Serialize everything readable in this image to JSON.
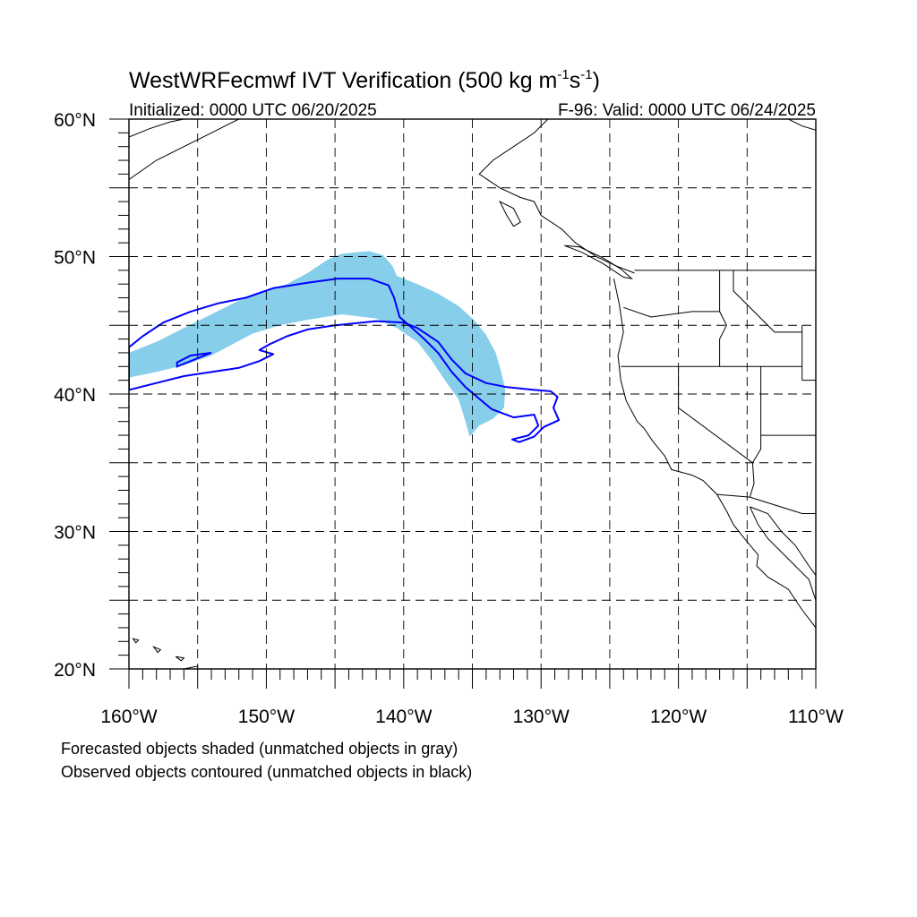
{
  "title": {
    "prefix": "WestWRFecmwf IVT Verification (500 kg m",
    "sup1": "-1",
    "mid": "s",
    "sup2": "-1",
    "suffix": ")"
  },
  "subtitle_left": "Initialized: 0000 UTC 06/20/2025",
  "subtitle_right": "F-96: Valid: 0000 UTC 06/24/2025",
  "axes": {
    "lon_range": [
      -160,
      -110
    ],
    "lat_range": [
      20,
      60
    ],
    "lon_ticks": [
      {
        "value": -160,
        "label": "160°W"
      },
      {
        "value": -150,
        "label": "150°W"
      },
      {
        "value": -140,
        "label": "140°W"
      },
      {
        "value": -130,
        "label": "130°W"
      },
      {
        "value": -120,
        "label": "120°W"
      },
      {
        "value": -110,
        "label": "110°W"
      }
    ],
    "lat_ticks": [
      {
        "value": 60,
        "label": "60°N"
      },
      {
        "value": 50,
        "label": "50°N"
      },
      {
        "value": 40,
        "label": "40°N"
      },
      {
        "value": 30,
        "label": "30°N"
      },
      {
        "value": 20,
        "label": "20°N"
      }
    ],
    "grid_step_deg": 5,
    "grid": true
  },
  "colors": {
    "forecast_fill": "#87ceeb",
    "observed_contour": "#0000ff",
    "coast": "#000000",
    "grid": "#000000"
  },
  "forecast_object": [
    [
      -160,
      43.0
    ],
    [
      -158,
      43.8
    ],
    [
      -156,
      44.8
    ],
    [
      -154,
      45.8
    ],
    [
      -152,
      46.8
    ],
    [
      -150,
      47.5
    ],
    [
      -148.5,
      48.0
    ],
    [
      -147,
      48.8
    ],
    [
      -145.5,
      49.8
    ],
    [
      -144.5,
      50.2
    ],
    [
      -142.5,
      50.4
    ],
    [
      -141.5,
      50.1
    ],
    [
      -140.8,
      49.3
    ],
    [
      -140.5,
      48.6
    ],
    [
      -139,
      48.0
    ],
    [
      -137.5,
      47.3
    ],
    [
      -136,
      46.4
    ],
    [
      -134.8,
      45.3
    ],
    [
      -134,
      44.3
    ],
    [
      -133.3,
      43.0
    ],
    [
      -132.9,
      41.6
    ],
    [
      -132.6,
      40.3
    ],
    [
      -132.7,
      39.0
    ],
    [
      -133.5,
      38.2
    ],
    [
      -134.5,
      37.7
    ],
    [
      -135.2,
      36.9
    ],
    [
      -135.5,
      38.0
    ],
    [
      -136.0,
      39.6
    ],
    [
      -137.0,
      41.0
    ],
    [
      -138.0,
      42.5
    ],
    [
      -139.0,
      43.8
    ],
    [
      -140.5,
      44.8
    ],
    [
      -142.0,
      45.5
    ],
    [
      -144.5,
      45.8
    ],
    [
      -147.0,
      45.4
    ],
    [
      -149.0,
      45.0
    ],
    [
      -151.0,
      44.4
    ],
    [
      -152.5,
      43.6
    ],
    [
      -154.0,
      42.8
    ],
    [
      -156.0,
      42.1
    ],
    [
      -158.0,
      41.6
    ],
    [
      -160.0,
      41.2
    ]
  ],
  "observed_object": [
    [
      -160,
      40.3
    ],
    [
      -158,
      40.8
    ],
    [
      -156,
      41.3
    ],
    [
      -154,
      41.6
    ],
    [
      -152,
      41.9
    ],
    [
      -150.5,
      42.4
    ],
    [
      -149.5,
      42.9
    ],
    [
      -150.5,
      43.2
    ],
    [
      -149.8,
      43.6
    ],
    [
      -148.5,
      44.2
    ],
    [
      -147,
      44.7
    ],
    [
      -145,
      45.0
    ],
    [
      -142,
      45.3
    ],
    [
      -140,
      45.2
    ],
    [
      -139,
      44.8
    ],
    [
      -137.5,
      43.8
    ],
    [
      -136.5,
      42.5
    ],
    [
      -135.5,
      41.5
    ],
    [
      -134.0,
      40.8
    ],
    [
      -132.5,
      40.5
    ],
    [
      -130.5,
      40.3
    ],
    [
      -129.3,
      40.2
    ],
    [
      -128.8,
      39.8
    ],
    [
      -129.1,
      39.0
    ],
    [
      -128.7,
      38.1
    ],
    [
      -129.8,
      37.6
    ],
    [
      -130.5,
      36.9
    ],
    [
      -131.6,
      36.5
    ],
    [
      -132.1,
      36.7
    ],
    [
      -130.9,
      37.0
    ],
    [
      -130.2,
      37.7
    ],
    [
      -130.5,
      38.5
    ],
    [
      -132.0,
      38.3
    ],
    [
      -133.6,
      38.9
    ],
    [
      -135.5,
      40.5
    ],
    [
      -136.5,
      41.6
    ],
    [
      -137.5,
      43.0
    ],
    [
      -138.5,
      44.0
    ],
    [
      -139.5,
      44.9
    ],
    [
      -140.3,
      45.6
    ],
    [
      -140.7,
      47.0
    ],
    [
      -141.1,
      47.9
    ],
    [
      -142.5,
      48.4
    ],
    [
      -144.8,
      48.4
    ],
    [
      -147,
      48.1
    ],
    [
      -149.5,
      47.7
    ],
    [
      -151.5,
      47.0
    ],
    [
      -153.5,
      46.6
    ],
    [
      -155.5,
      46.0
    ],
    [
      -157.5,
      45.2
    ],
    [
      -159,
      44.2
    ],
    [
      -160,
      43.4
    ]
  ],
  "observed_object_small": [
    [
      -156.5,
      42.0
    ],
    [
      -155.0,
      42.6
    ],
    [
      -154.0,
      43.0
    ],
    [
      -155.5,
      42.8
    ],
    [
      -156.5,
      42.3
    ]
  ],
  "captions": {
    "line1": "Forecasted objects shaded (unmatched objects in gray)",
    "line2": "Observed objects contoured (unmatched objects in black)"
  }
}
